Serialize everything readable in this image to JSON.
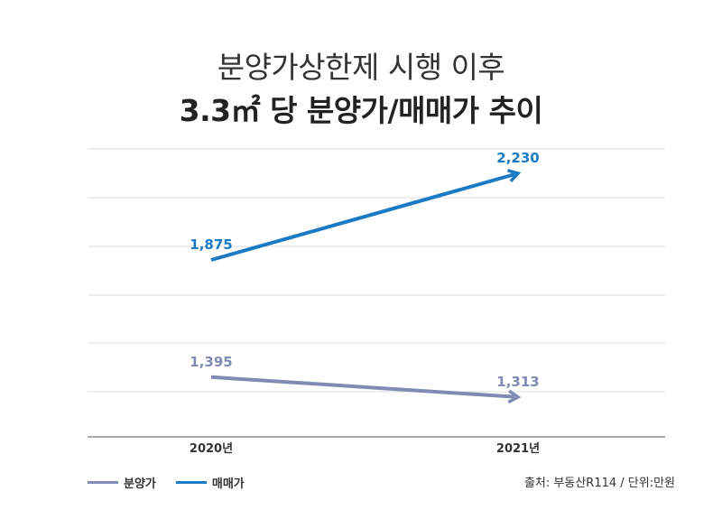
{
  "chart_data": {
    "type": "line",
    "title": "분양가상한제 시행 이후",
    "subtitle": "3.3㎡ 당 분양가/매매가 추이",
    "xlabel": "",
    "ylabel": "",
    "categories": [
      "2020년",
      "2021년"
    ],
    "ylim": [
      1150,
      2330
    ],
    "grid": true,
    "series": [
      {
        "name": "분양가",
        "values": [
          1395,
          1313
        ],
        "labels": [
          "1,395",
          "1,313"
        ],
        "color": "#7f8bb3"
      },
      {
        "name": "매매가",
        "values": [
          1875,
          2230
        ],
        "labels": [
          "1,875",
          "2,230"
        ],
        "color": "#1a7ac4"
      }
    ],
    "legend_placement": "bottom-left",
    "source_note": "출처: 부동산R114 / 단위:만원"
  }
}
